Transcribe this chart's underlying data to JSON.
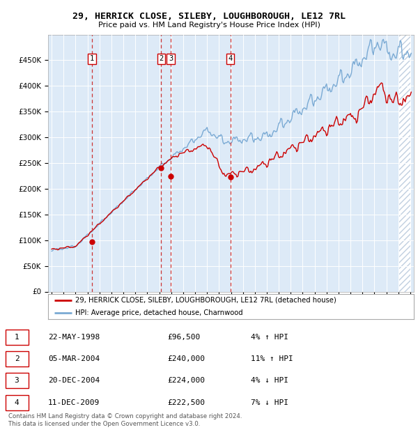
{
  "title": "29, HERRICK CLOSE, SILEBY, LOUGHBOROUGH, LE12 7RL",
  "subtitle": "Price paid vs. HM Land Registry's House Price Index (HPI)",
  "hpi_color": "#7aaad4",
  "price_color": "#cc0000",
  "background_color": "#ddeaf7",
  "hatch_color": "#c0cfe0",
  "ylim": [
    0,
    500000
  ],
  "yticks": [
    0,
    50000,
    100000,
    150000,
    200000,
    250000,
    300000,
    350000,
    400000,
    450000
  ],
  "xlim_start": 1994.7,
  "xlim_end": 2025.3,
  "hatch_start": 2024.0,
  "sales": [
    {
      "num": 1,
      "year": 1998.38,
      "price": 96500
    },
    {
      "num": 2,
      "year": 2004.17,
      "price": 240000
    },
    {
      "num": 3,
      "year": 2004.97,
      "price": 224000
    },
    {
      "num": 4,
      "year": 2009.95,
      "price": 222500
    }
  ],
  "legend_label_price": "29, HERRICK CLOSE, SILEBY, LOUGHBOROUGH, LE12 7RL (detached house)",
  "legend_label_hpi": "HPI: Average price, detached house, Charnwood",
  "footer": "Contains HM Land Registry data © Crown copyright and database right 2024.\nThis data is licensed under the Open Government Licence v3.0.",
  "table_rows": [
    [
      "1",
      "22-MAY-1998",
      "£96,500",
      "4% ↑ HPI"
    ],
    [
      "2",
      "05-MAR-2004",
      "£240,000",
      "11% ↑ HPI"
    ],
    [
      "3",
      "20-DEC-2004",
      "£224,000",
      "4% ↓ HPI"
    ],
    [
      "4",
      "11-DEC-2009",
      "£222,500",
      "7% ↓ HPI"
    ]
  ]
}
